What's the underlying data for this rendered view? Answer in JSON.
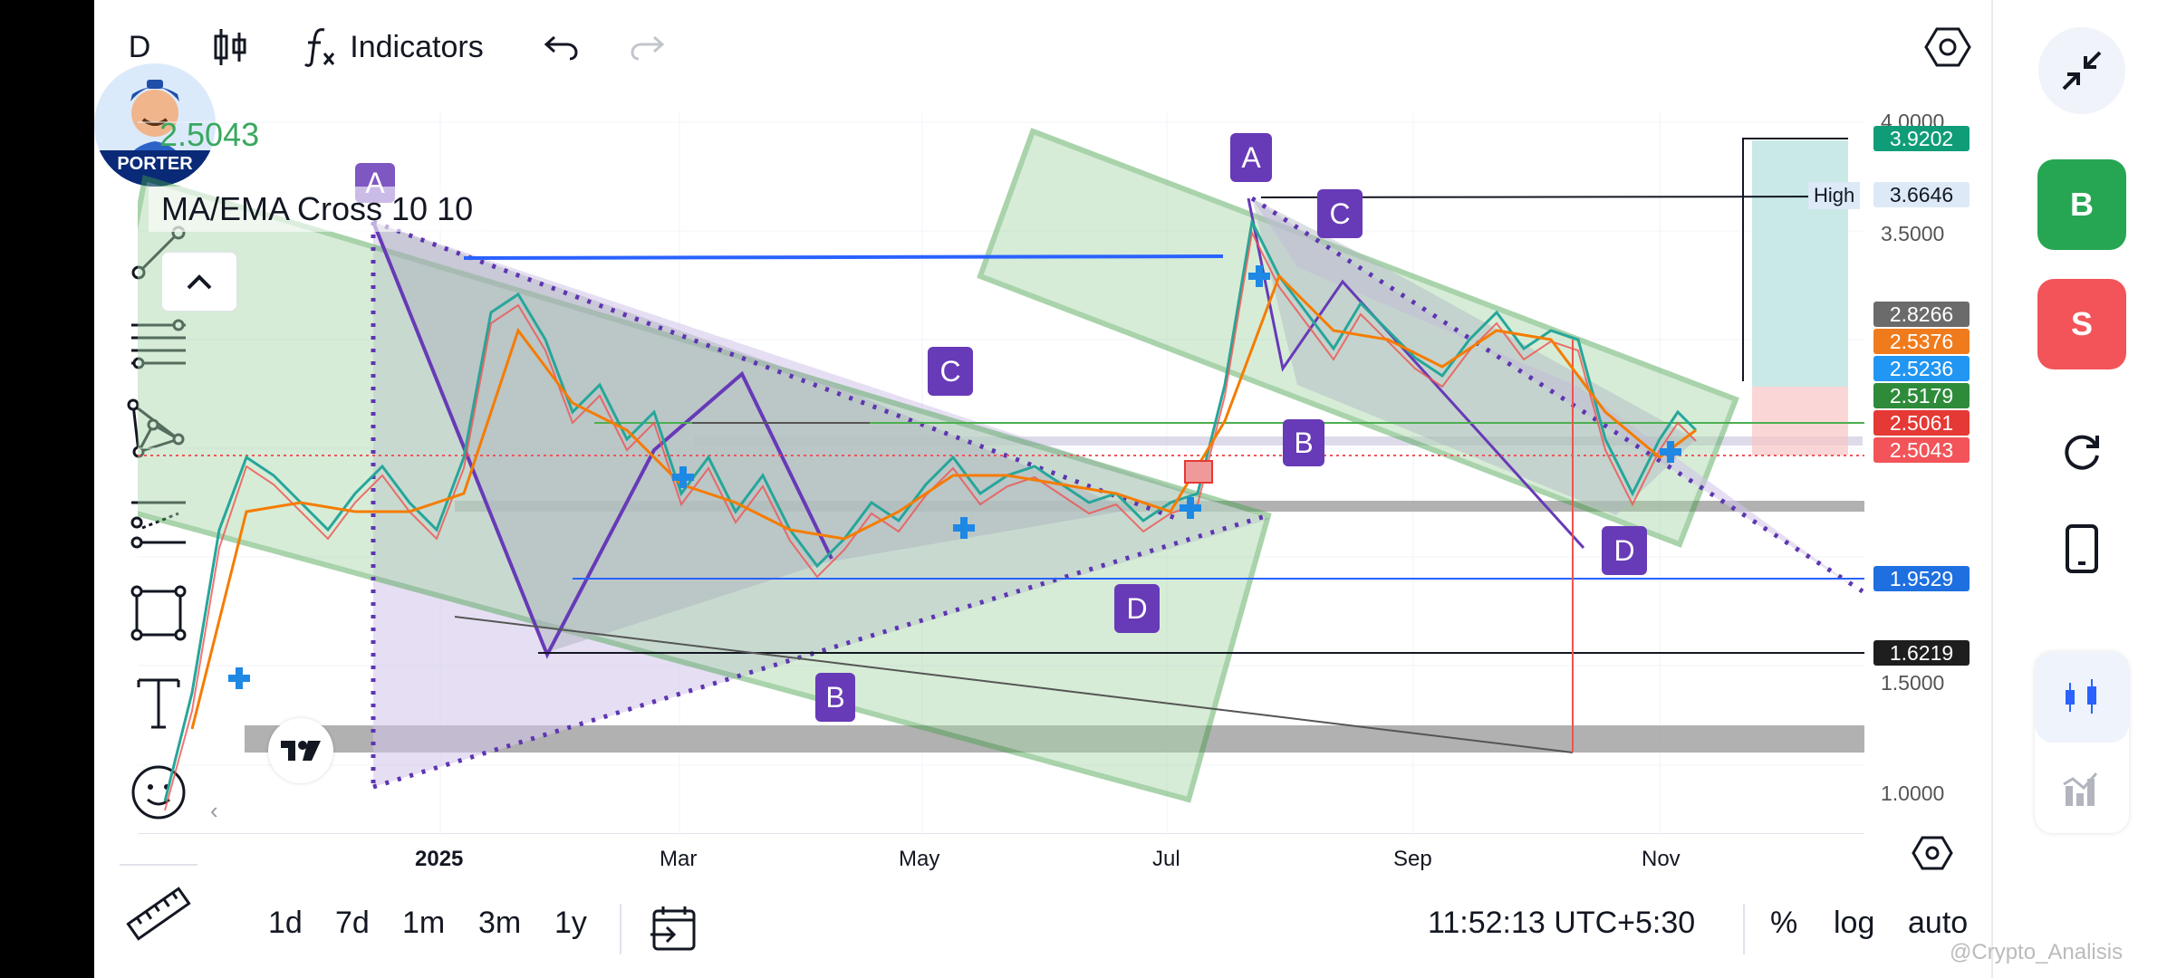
{
  "toolbar": {
    "interval": "D",
    "indicators_label": "Indicators",
    "icons": [
      "candles-icon",
      "function-icon",
      "undo-icon",
      "redo-icon",
      "settings-hexagon-icon"
    ]
  },
  "avatar": {
    "label": "PORTER"
  },
  "legend": {
    "price": "2.5043",
    "indicator": "MA/EMA Cross 10 10"
  },
  "price_scale": {
    "ticks": [
      "4.0000",
      "3.5000",
      "1.5000",
      "1.0000"
    ],
    "labels": [
      {
        "text": "3.9202",
        "color": "#0f9d78"
      },
      {
        "text": "3.6646",
        "color": "#dde9f7",
        "prefix": "High"
      },
      {
        "text": "2.8266",
        "color": "#6b6b6b"
      },
      {
        "text": "2.5376",
        "color": "#f07b1c"
      },
      {
        "text": "2.5236",
        "color": "#2196f3"
      },
      {
        "text": "2.5179",
        "color": "#2e8b3a"
      },
      {
        "text": "2.5061",
        "color": "#e53935"
      },
      {
        "text": "2.5043",
        "color": "#f25459"
      },
      {
        "text": "1.9529",
        "color": "#1e6fe0"
      },
      {
        "text": "1.6219",
        "color": "#1e1e1e"
      }
    ]
  },
  "time_scale": {
    "ticks": [
      "2025",
      "Mar",
      "May",
      "Jul",
      "Sep",
      "Nov"
    ]
  },
  "patterns": {
    "left": {
      "A": "A",
      "B": "B",
      "C": "C",
      "D": "D"
    },
    "right": {
      "A": "A",
      "B": "B",
      "C": "C",
      "D": "D"
    }
  },
  "bottom_bar": {
    "ranges": [
      "1d",
      "7d",
      "1m",
      "3m",
      "1y"
    ],
    "time": "11:52:13 UTC+5:30",
    "percent": "%",
    "log": "log",
    "auto": "auto"
  },
  "right_panel": {
    "buy": "B",
    "sell": "S"
  },
  "watermark": "@Crypto_Analisis",
  "colors": {
    "up": "#26a69a",
    "down": "#ef5350",
    "channel_green": "#4caf50",
    "pattern_purple": "#673ab7"
  }
}
